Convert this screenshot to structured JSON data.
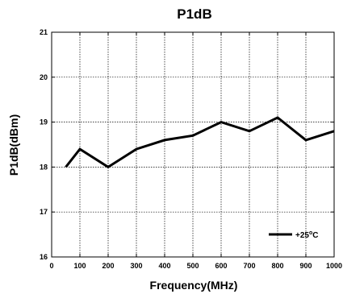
{
  "chart_data": {
    "type": "line",
    "title": "P1dB",
    "xlabel": "Frequency(MHz)",
    "ylabel": "P1dB(dBm)",
    "xlim": [
      0,
      1000
    ],
    "ylim": [
      16,
      21
    ],
    "xticks": [
      0,
      100,
      200,
      300,
      400,
      500,
      600,
      700,
      800,
      900,
      1000
    ],
    "yticks": [
      16,
      17,
      18,
      19,
      20,
      21
    ],
    "grid": true,
    "legend_position": "bottom-right",
    "series": [
      {
        "name": "+25°C",
        "name_base": "+25",
        "name_sup": "o",
        "name_unit": "C",
        "color": "#000000",
        "x": [
          50,
          100,
          200,
          300,
          400,
          500,
          600,
          700,
          800,
          900,
          1000
        ],
        "y": [
          18.0,
          18.4,
          18.0,
          18.4,
          18.6,
          18.7,
          19.0,
          18.8,
          19.1,
          18.6,
          18.8
        ]
      }
    ]
  }
}
